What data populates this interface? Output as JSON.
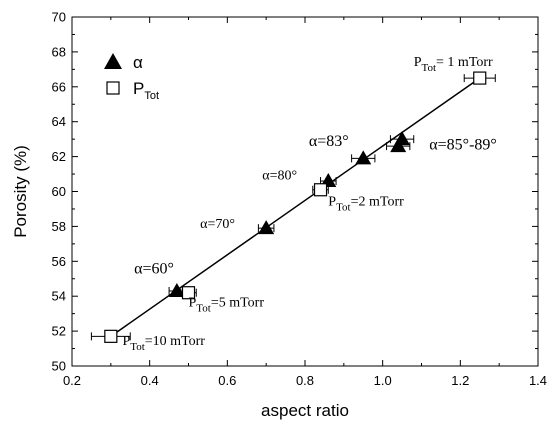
{
  "chart_data": {
    "type": "scatter",
    "xlabel": "aspect ratio",
    "ylabel": "Porosity (%)",
    "xlim": [
      0.2,
      1.4
    ],
    "ylim": [
      50,
      70
    ],
    "xticks": [
      "0.2",
      "0.4",
      "0.6",
      "0.8",
      "1.0",
      "1.2",
      "1.4"
    ],
    "yticks": [
      "50",
      "52",
      "54",
      "56",
      "58",
      "60",
      "62",
      "64",
      "66",
      "68",
      "70"
    ],
    "legend": {
      "position": "top-left",
      "entries": [
        "α",
        "P"
      ],
      "entry2_sub": "Tot"
    },
    "series": [
      {
        "name": "α",
        "marker": "filled-triangle",
        "points": [
          {
            "x": 0.47,
            "y": 54.3,
            "xerr": 0.02
          },
          {
            "x": 0.7,
            "y": 57.9,
            "xerr": 0.02
          },
          {
            "x": 0.86,
            "y": 60.6,
            "xerr": 0.02
          },
          {
            "x": 0.95,
            "y": 61.9,
            "xerr": 0.03
          },
          {
            "x": 1.05,
            "y": 63.0,
            "xerr": 0.03
          },
          {
            "x": 1.04,
            "y": 62.6,
            "xerr": 0.03
          }
        ]
      },
      {
        "name": "P",
        "marker": "open-square",
        "points": [
          {
            "x": 0.3,
            "y": 51.7,
            "xerr": 0.05
          },
          {
            "x": 0.5,
            "y": 54.2,
            "xerr": 0.02
          },
          {
            "x": 0.84,
            "y": 60.1,
            "xerr": 0.02
          },
          {
            "x": 1.25,
            "y": 66.5,
            "xerr": 0.04
          }
        ]
      }
    ],
    "fit_line": {
      "x": [
        0.3,
        1.25
      ],
      "y": [
        51.7,
        66.5
      ]
    },
    "annotations": [
      {
        "id": "a60",
        "text": "α=60°",
        "x": 0.36,
        "y": 55.3,
        "size": "large"
      },
      {
        "id": "a70",
        "text": "α=70°",
        "x": 0.53,
        "y": 57.9
      },
      {
        "id": "a80",
        "text": "α=80°",
        "x": 0.69,
        "y": 60.7
      },
      {
        "id": "a83",
        "text": "α=83°",
        "x": 0.81,
        "y": 62.6,
        "size": "large"
      },
      {
        "id": "a85",
        "text": "α=85°-89°",
        "x": 1.12,
        "y": 62.4,
        "size": "large"
      },
      {
        "id": "p1",
        "main": "P",
        "sub": "Tot",
        "rest": "= 1 mTorr",
        "x": 1.08,
        "y": 67.2
      },
      {
        "id": "p2",
        "main": "P",
        "sub": "Tot",
        "rest": "=2 mTorr",
        "x": 0.86,
        "y": 59.2
      },
      {
        "id": "p5",
        "main": "P",
        "sub": "Tot",
        "rest": "=5 mTorr",
        "x": 0.5,
        "y": 53.4
      },
      {
        "id": "p10",
        "main": "P",
        "sub": "Tot",
        "rest": "=10 mTorr",
        "x": 0.33,
        "y": 51.2
      }
    ]
  }
}
